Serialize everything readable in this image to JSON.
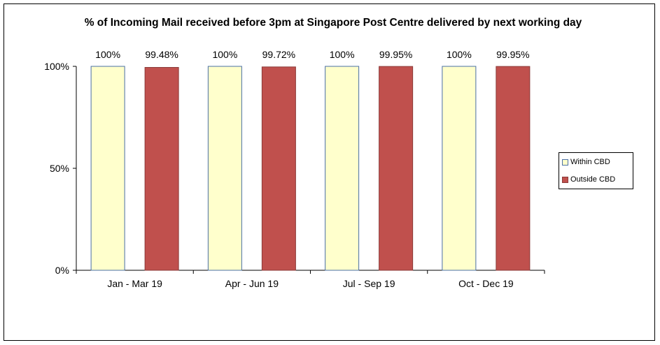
{
  "chart_data": {
    "type": "bar",
    "title": "% of Incoming Mail received before 3pm at Singapore Post Centre delivered by next working day",
    "categories": [
      "Jan - Mar 19",
      "Apr - Jun 19",
      "Jul - Sep 19",
      "Oct - Dec 19"
    ],
    "series": [
      {
        "name": "Within CBD",
        "values": [
          100,
          100,
          100,
          100
        ],
        "labels": [
          "100%",
          "100%",
          "100%",
          "100%"
        ],
        "color": "#ffffcc",
        "stroke": "#4a6fa5"
      },
      {
        "name": "Outside CBD",
        "values": [
          99.48,
          99.72,
          99.95,
          99.95
        ],
        "labels": [
          "99.48%",
          "99.72%",
          "99.95%",
          "99.95%"
        ],
        "color": "#c0504d",
        "stroke": "#8b3a38"
      }
    ],
    "ylim": [
      0,
      100
    ],
    "yticks": [
      {
        "value": 0,
        "label": "0%"
      },
      {
        "value": 50,
        "label": "50%"
      },
      {
        "value": 100,
        "label": "100%"
      }
    ],
    "xlabel": "",
    "ylabel": "",
    "grid": false,
    "legend_position": "right"
  }
}
